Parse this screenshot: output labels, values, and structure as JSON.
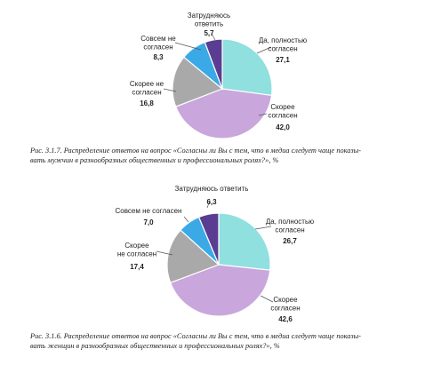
{
  "chart_data": [
    {
      "type": "pie",
      "categories": [
        "Да, полностью согласен",
        "Скорее согласен",
        "Скорее не согласен",
        "Совсем не согласен",
        "Затрудняюсь ответить"
      ],
      "values": [
        27.1,
        42.0,
        16.8,
        8.3,
        5.7
      ],
      "value_labels": [
        "27,1",
        "42,0",
        "16,8",
        "8,3",
        "5,7"
      ],
      "slice_labels": [
        [
          "Да, полностью",
          "согласен"
        ],
        [
          "Скорее",
          "согласен"
        ],
        [
          "Скорее не",
          "согласен"
        ],
        [
          "Совсем не",
          "согласен"
        ],
        [
          "Затрудняюсь",
          "ответить"
        ]
      ],
      "colors": [
        "#8fe0de",
        "#c9a6dc",
        "#a9a9a9",
        "#3aa9e6",
        "#5a3d93"
      ],
      "caption_lines": [
        "Рис. 3.1.7. Распределение ответов на вопрос «Согласны ли Вы с тем, что в медиа следует чаще показы-",
        "вать мужчин в разнообразных общественных и профессиональных ролях?», %"
      ]
    },
    {
      "type": "pie",
      "categories": [
        "Да, полностью согласен",
        "Скорее согласен",
        "Скорее не согласен",
        "Совсем не согласен",
        "Затрудняюсь ответить"
      ],
      "values": [
        26.7,
        42.6,
        17.4,
        7.0,
        6.3
      ],
      "value_labels": [
        "26,7",
        "42,6",
        "17,4",
        "7,0",
        "6,3"
      ],
      "slice_labels": [
        [
          "Да, полностью",
          "согласен"
        ],
        [
          "Скорее",
          "согласен"
        ],
        [
          "Скорее",
          "не согласен"
        ],
        [
          "Совсем не согласен"
        ],
        [
          "Затрудняюсь ответить"
        ]
      ],
      "colors": [
        "#8fe0de",
        "#c9a6dc",
        "#a9a9a9",
        "#3aa9e6",
        "#5a3d93"
      ],
      "caption_lines": [
        "Рис. 3.1.6. Распределение ответов на вопрос «Согласны ли Вы с тем, что в медиа следует чаще показы-",
        "вать женщин в разнообразных общественных и профессиональных ролях?», %"
      ]
    }
  ]
}
